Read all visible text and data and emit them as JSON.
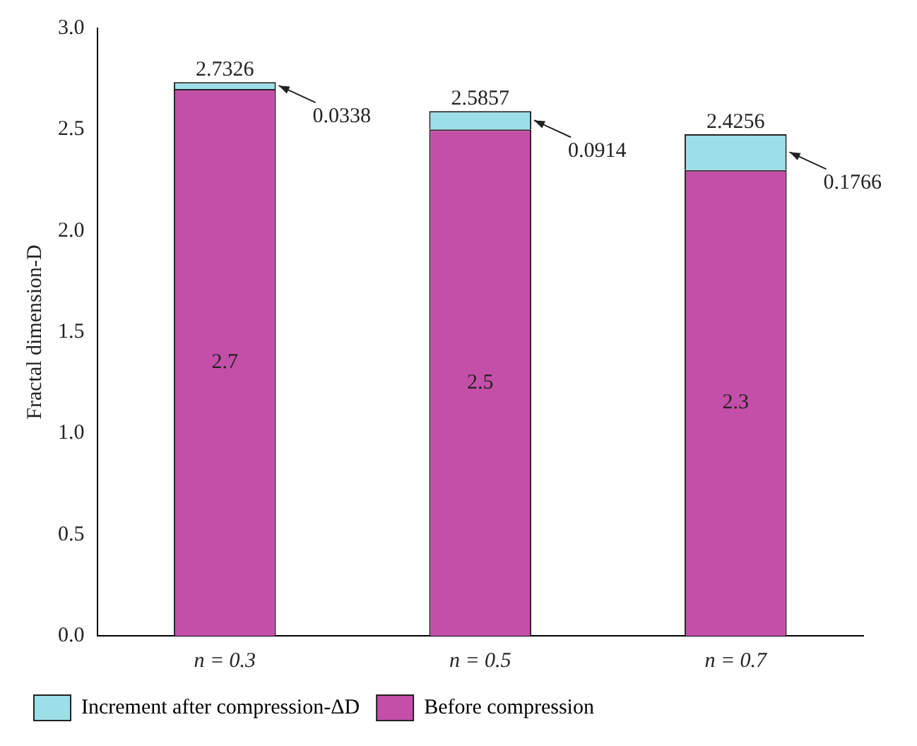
{
  "chart_data": {
    "type": "bar",
    "ylabel": "Fractal dimension-D",
    "categories": [
      "n = 0.3",
      "n = 0.5",
      "n = 0.7"
    ],
    "series": [
      {
        "name": "Before compression",
        "color": "#c44fa8",
        "values": [
          2.7,
          2.5,
          2.3
        ]
      },
      {
        "name": "Increment after compression-ΔD",
        "color": "#9ddfe8",
        "values": [
          0.0338,
          0.0914,
          0.1766
        ]
      }
    ],
    "stacked": true,
    "data_labels": true,
    "annotations": [
      {
        "text": "2.7326",
        "x": "n = 0.3",
        "y": 2.7338
      },
      {
        "text": "2.5857",
        "x": "n = 0.5",
        "y": 2.5914
      },
      {
        "text": "2.4256",
        "x": "n = 0.7",
        "y": 2.4766
      }
    ],
    "ylim": [
      0,
      3
    ],
    "yticks": [
      {
        "value": 0,
        "label": "0.0"
      },
      0.5,
      {
        "value": 1,
        "label": "1.0"
      },
      1.5,
      {
        "value": 2,
        "label": "2.0"
      },
      2.5,
      {
        "value": 3,
        "label": "3.0"
      }
    ],
    "grid": false,
    "legend": "bottom"
  }
}
